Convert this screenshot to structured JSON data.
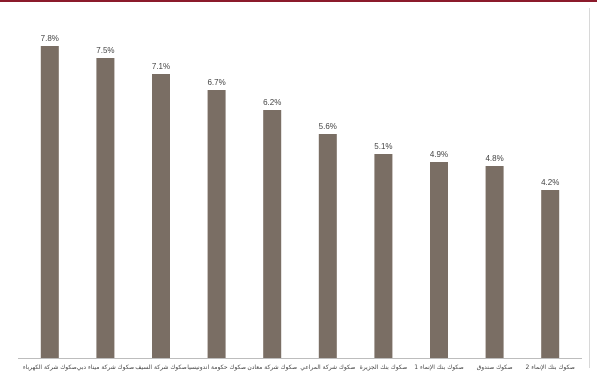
{
  "chart_data": {
    "type": "bar",
    "categories": [
      "صكوك شركة الكهرباء",
      "صكوك شركة ميناء دبي",
      "صكوك شركة السيف",
      "صكوك حكومة اندونيسيا",
      "صكوك شركة معادن",
      "صكوك شركة المراعي",
      "صكوك بنك الجزيرة",
      "صكوك بنك الإنماء 1",
      "صكوك صندوق",
      "صكوك بنك الإنماء 2"
    ],
    "values": [
      7.8,
      7.5,
      7.1,
      6.7,
      6.2,
      5.6,
      5.1,
      4.9,
      4.8,
      4.2
    ],
    "value_labels": [
      "7.8%",
      "7.5%",
      "7.1%",
      "6.7%",
      "6.2%",
      "5.6%",
      "5.1%",
      "4.9%",
      "4.8%",
      "4.2%"
    ],
    "value_unit": "%",
    "title": "",
    "xlabel": "",
    "ylabel": "",
    "ylim": [
      0,
      8.6
    ],
    "grid": false,
    "legend": "none",
    "colors": {
      "bar": "#7a6e64",
      "top_rule": "#8b1a2b",
      "baseline": "#bdbdbd",
      "text": "#444444"
    }
  }
}
